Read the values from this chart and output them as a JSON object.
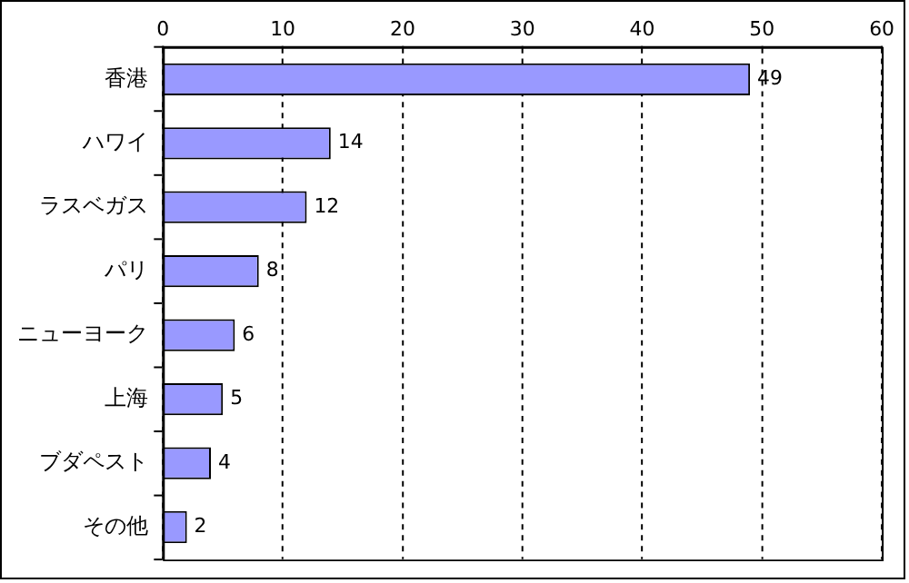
{
  "chart_data": {
    "type": "bar",
    "orientation": "horizontal",
    "categories": [
      "香港",
      "ハワイ",
      "ラスベガス",
      "パリ",
      "ニューヨーク",
      "上海",
      "ブダペスト",
      "その他"
    ],
    "values": [
      49,
      14,
      12,
      8,
      6,
      5,
      4,
      2
    ],
    "color": "#9999ff",
    "xlim": [
      0,
      60
    ],
    "xticks": [
      0,
      10,
      20,
      30,
      40,
      50,
      60
    ],
    "grid": "x",
    "data_labels": true,
    "legend": false
  }
}
